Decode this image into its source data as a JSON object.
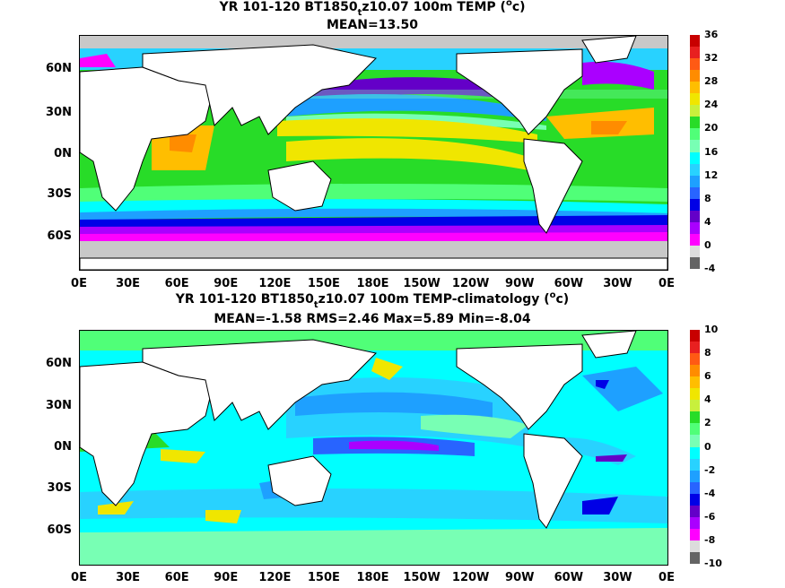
{
  "panels": [
    {
      "title_main": "YR 101-120 BT1850",
      "title_sub": "t",
      "title_rest": "z10.07 100m TEMP (",
      "title_sup": "o",
      "title_end": "c)",
      "stats": "MEAN=13.50",
      "lat_labels": [
        "60N",
        "30N",
        "0N",
        "30S",
        "60S"
      ],
      "lon_labels": [
        "0E",
        "30E",
        "60E",
        "90E",
        "120E",
        "150E",
        "180E",
        "150W",
        "120W",
        "90W",
        "60W",
        "30W",
        "0E"
      ],
      "colorbar": {
        "ticks": [
          "36",
          "32",
          "28",
          "24",
          "20",
          "16",
          "12",
          "8",
          "4",
          "0",
          "-4"
        ],
        "colors": [
          "#c80000",
          "#e82020",
          "#ff5a14",
          "#ff8c00",
          "#ffbe00",
          "#f0e600",
          "#c8f03c",
          "#28dc28",
          "#50ff78",
          "#78ffb4",
          "#00ffff",
          "#28d2ff",
          "#1ea0ff",
          "#2864ff",
          "#0000e6",
          "#6400c8",
          "#aa00ff",
          "#ff00ff",
          "#dcdcdc",
          "#646464"
        ]
      }
    },
    {
      "title_main": "YR 101-120 BT1850",
      "title_sub": "t",
      "title_rest": "z10.07 100m TEMP-climatology (",
      "title_sup": "o",
      "title_end": "c)",
      "stats": "MEAN=-1.58   RMS=2.46   Max=5.89   Min=-8.04",
      "lat_labels": [
        "60N",
        "30N",
        "0N",
        "30S",
        "60S"
      ],
      "lon_labels": [
        "0E",
        "30E",
        "60E",
        "90E",
        "120E",
        "150E",
        "180E",
        "150W",
        "120W",
        "90W",
        "60W",
        "30W",
        "0E"
      ],
      "colorbar": {
        "ticks": [
          "10",
          "8",
          "6",
          "4",
          "2",
          "0",
          "-2",
          "-4",
          "-6",
          "-8",
          "-10"
        ],
        "colors": [
          "#c80000",
          "#e82020",
          "#ff5a14",
          "#ff8c00",
          "#ffbe00",
          "#f0e600",
          "#c8f03c",
          "#28dc28",
          "#50ff78",
          "#78ffb4",
          "#00ffff",
          "#28d2ff",
          "#1ea0ff",
          "#2864ff",
          "#0000e6",
          "#6400c8",
          "#aa00ff",
          "#ff00ff",
          "#dcdcdc",
          "#646464"
        ]
      }
    }
  ],
  "chart_data": [
    {
      "type": "heatmap",
      "title": "YR 101-120 BT1850tz10.07 100m TEMP (oc)",
      "subtitle": "MEAN=13.50",
      "xlabel": "",
      "ylabel": "",
      "x_ticks": [
        "0E",
        "30E",
        "60E",
        "90E",
        "120E",
        "150E",
        "180E",
        "150W",
        "120W",
        "90W",
        "60W",
        "30W",
        "0E"
      ],
      "y_ticks": [
        "60N",
        "30N",
        "0N",
        "30S",
        "60S"
      ],
      "colorbar_ticks": [
        36,
        32,
        28,
        24,
        20,
        16,
        12,
        8,
        4,
        0,
        -4
      ],
      "colorbar_range": [
        -4,
        36
      ],
      "mean": 13.5
    },
    {
      "type": "heatmap",
      "title": "YR 101-120 BT1850tz10.07 100m TEMP-climatology (oc)",
      "subtitle": "MEAN=-1.58   RMS=2.46   Max=5.89   Min=-8.04",
      "xlabel": "",
      "ylabel": "",
      "x_ticks": [
        "0E",
        "30E",
        "60E",
        "90E",
        "120E",
        "150E",
        "180E",
        "150W",
        "120W",
        "90W",
        "60W",
        "30W",
        "0E"
      ],
      "y_ticks": [
        "60N",
        "30N",
        "0N",
        "30S",
        "60S"
      ],
      "colorbar_ticks": [
        10,
        8,
        6,
        4,
        2,
        0,
        -2,
        -4,
        -6,
        -8,
        -10
      ],
      "colorbar_range": [
        -10,
        10
      ],
      "mean": -1.58,
      "rms": 2.46,
      "max": 5.89,
      "min": -8.04
    }
  ]
}
